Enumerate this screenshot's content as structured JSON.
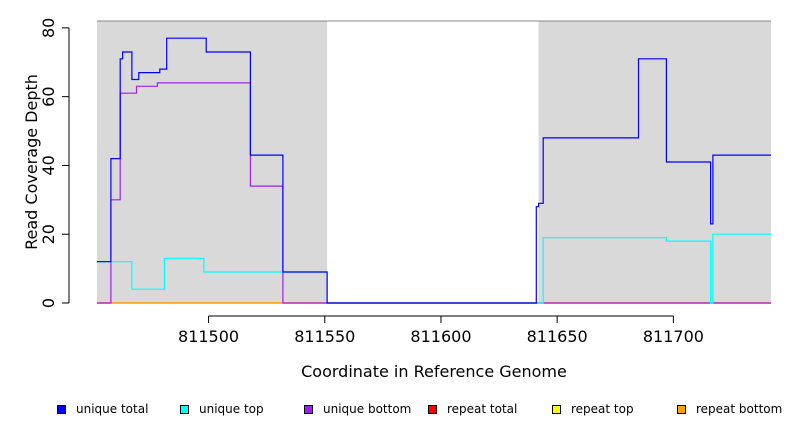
{
  "chart_data": {
    "type": "line",
    "title": "",
    "xlabel": "Coordinate in Reference Genome",
    "ylabel": "Read Coverage Depth",
    "xlim": [
      811452,
      811742
    ],
    "ylim": [
      0,
      82
    ],
    "xticks": [
      811500,
      811550,
      811600,
      811650,
      811700
    ],
    "yticks": [
      0,
      20,
      40,
      60,
      80
    ],
    "shaded_regions": [
      [
        811452,
        811551
      ],
      [
        811642,
        811742
      ]
    ],
    "grid": false,
    "legend_position": "bottom",
    "series": [
      {
        "name": "unique total",
        "color": "#0000ff",
        "points": [
          [
            811452,
            12
          ],
          [
            811458,
            12
          ],
          [
            811458,
            42
          ],
          [
            811462,
            42
          ],
          [
            811462,
            71
          ],
          [
            811463,
            71
          ],
          [
            811463,
            73
          ],
          [
            811467,
            73
          ],
          [
            811467,
            65
          ],
          [
            811470,
            65
          ],
          [
            811470,
            67
          ],
          [
            811479,
            67
          ],
          [
            811479,
            68
          ],
          [
            811482,
            68
          ],
          [
            811482,
            77
          ],
          [
            811499,
            77
          ],
          [
            811499,
            73
          ],
          [
            811518,
            73
          ],
          [
            811518,
            43
          ],
          [
            811532,
            43
          ],
          [
            811532,
            9
          ],
          [
            811551,
            9
          ],
          [
            811551,
            0
          ],
          [
            811641,
            0
          ],
          [
            811641,
            28
          ],
          [
            811642,
            28
          ],
          [
            811642,
            29
          ],
          [
            811644,
            29
          ],
          [
            811644,
            48
          ],
          [
            811685,
            48
          ],
          [
            811685,
            71
          ],
          [
            811697,
            71
          ],
          [
            811697,
            41
          ],
          [
            811716,
            41
          ],
          [
            811716,
            23
          ],
          [
            811717,
            23
          ],
          [
            811717,
            43
          ],
          [
            811742,
            43
          ]
        ]
      },
      {
        "name": "unique top",
        "color": "#00ffff",
        "points": [
          [
            811452,
            12
          ],
          [
            811467,
            12
          ],
          [
            811467,
            4
          ],
          [
            811481,
            4
          ],
          [
            811481,
            13
          ],
          [
            811498,
            13
          ],
          [
            811498,
            9
          ],
          [
            811531,
            9
          ],
          [
            811531,
            9
          ],
          [
            811551,
            9
          ],
          [
            811551,
            0
          ],
          [
            811644,
            0
          ],
          [
            811644,
            19
          ],
          [
            811697,
            19
          ],
          [
            811697,
            18
          ],
          [
            811716,
            18
          ],
          [
            811716,
            0
          ],
          [
            811717,
            0
          ],
          [
            811717,
            20
          ],
          [
            811742,
            20
          ]
        ]
      },
      {
        "name": "unique bottom",
        "color": "#a020f0",
        "points": [
          [
            811452,
            0
          ],
          [
            811458,
            0
          ],
          [
            811458,
            30
          ],
          [
            811462,
            30
          ],
          [
            811462,
            61
          ],
          [
            811469,
            61
          ],
          [
            811469,
            63
          ],
          [
            811478,
            63
          ],
          [
            811478,
            64
          ],
          [
            811518,
            64
          ],
          [
            811518,
            34
          ],
          [
            811532,
            34
          ],
          [
            811532,
            0
          ],
          [
            811742,
            0
          ]
        ]
      },
      {
        "name": "repeat total",
        "color": "#ff0000",
        "points": [
          [
            811452,
            0
          ],
          [
            811742,
            0
          ]
        ]
      },
      {
        "name": "repeat top",
        "color": "#ffff00",
        "points": [
          [
            811452,
            0
          ],
          [
            811742,
            0
          ]
        ]
      },
      {
        "name": "repeat bottom",
        "color": "#ffa500",
        "points": [
          [
            811452,
            0
          ],
          [
            811742,
            0
          ]
        ]
      }
    ]
  },
  "legend": {
    "items": [
      {
        "label": "unique total",
        "color": "#0000ff"
      },
      {
        "label": "unique top",
        "color": "#00ffff"
      },
      {
        "label": "unique bottom",
        "color": "#a020f0"
      },
      {
        "label": "repeat total",
        "color": "#ff0000"
      },
      {
        "label": "repeat top",
        "color": "#ffff00"
      },
      {
        "label": "repeat bottom",
        "color": "#ffa500"
      }
    ]
  }
}
